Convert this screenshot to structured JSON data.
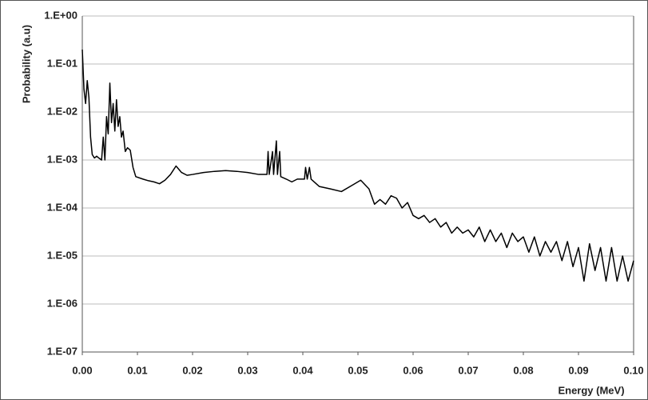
{
  "chart_data": {
    "type": "line",
    "ylabel": "Probability (a.u)",
    "xlabel": "Energy (MeV)",
    "log_y": true,
    "grid": true,
    "xlim": [
      0,
      0.1
    ],
    "ylim": [
      1e-07,
      1
    ],
    "xticks": [
      {
        "value": 0,
        "label": "0.00"
      },
      0.01,
      0.02,
      0.03,
      0.04,
      0.05,
      0.06,
      0.07,
      0.08,
      0.09,
      {
        "value": 0.1,
        "label": "0.10"
      }
    ],
    "yticks": [
      {
        "value": 1e-07,
        "label": "1.E-07"
      },
      {
        "value": 1e-06,
        "label": "1.E-06"
      },
      {
        "value": 1e-05,
        "label": "1.E-05"
      },
      {
        "value": 0.0001,
        "label": "1.E-04"
      },
      {
        "value": 0.001,
        "label": "1.E-03"
      },
      {
        "value": 0.01,
        "label": "1.E-02"
      },
      {
        "value": 0.1,
        "label": "1.E-01"
      },
      {
        "value": 1,
        "label": "1.E+00"
      }
    ],
    "x": [
      0,
      0.0003,
      0.0006,
      0.0009,
      0.0012,
      0.0015,
      0.0018,
      0.0022,
      0.0026,
      0.003,
      0.0035,
      0.0038,
      0.0041,
      0.0044,
      0.0047,
      0.005,
      0.0053,
      0.0056,
      0.0059,
      0.0062,
      0.0065,
      0.0068,
      0.0071,
      0.0074,
      0.0078,
      0.0082,
      0.0087,
      0.0092,
      0.0097,
      0.011,
      0.012,
      0.013,
      0.014,
      0.015,
      0.016,
      0.017,
      0.018,
      0.019,
      0.02,
      0.022,
      0.024,
      0.026,
      0.028,
      0.03,
      0.032,
      0.0335,
      0.0337,
      0.0339,
      0.0345,
      0.0347,
      0.0352,
      0.0354,
      0.0358,
      0.036,
      0.037,
      0.038,
      0.039,
      0.0403,
      0.0405,
      0.0408,
      0.0412,
      0.0415,
      0.043,
      0.045,
      0.047,
      0.049,
      0.0505,
      0.052,
      0.053,
      0.054,
      0.055,
      0.056,
      0.057,
      0.058,
      0.059,
      0.06,
      0.061,
      0.062,
      0.063,
      0.064,
      0.065,
      0.066,
      0.067,
      0.068,
      0.069,
      0.07,
      0.071,
      0.072,
      0.073,
      0.074,
      0.075,
      0.076,
      0.077,
      0.078,
      0.079,
      0.08,
      0.081,
      0.082,
      0.083,
      0.084,
      0.085,
      0.086,
      0.087,
      0.088,
      0.089,
      0.09,
      0.091,
      0.092,
      0.093,
      0.094,
      0.095,
      0.096,
      0.097,
      0.098,
      0.099,
      0.1
    ],
    "series": [
      {
        "color": "#000000",
        "values": [
          0.2,
          0.03,
          0.015,
          0.045,
          0.02,
          0.003,
          0.0013,
          0.0011,
          0.0012,
          0.0011,
          0.001,
          0.003,
          0.001,
          0.008,
          0.0035,
          0.04,
          0.006,
          0.015,
          0.004,
          0.018,
          0.005,
          0.008,
          0.003,
          0.004,
          0.0015,
          0.0018,
          0.0016,
          0.0007,
          0.00045,
          0.0004,
          0.00037,
          0.00035,
          0.00032,
          0.00038,
          0.0005,
          0.00075,
          0.00055,
          0.00048,
          0.0005,
          0.00055,
          0.00058,
          0.0006,
          0.00058,
          0.00055,
          0.0005,
          0.0005,
          0.0015,
          0.0005,
          0.0015,
          0.0005,
          0.0025,
          0.0005,
          0.0015,
          0.00045,
          0.0004,
          0.00035,
          0.0004,
          0.0004,
          0.0007,
          0.0004,
          0.0007,
          0.0004,
          0.00028,
          0.00025,
          0.00022,
          0.0003,
          0.00038,
          0.00025,
          0.00012,
          0.00015,
          0.00012,
          0.00018,
          0.00016,
          0.0001,
          0.00013,
          7e-05,
          6e-05,
          7e-05,
          5e-05,
          6e-05,
          4e-05,
          5e-05,
          3e-05,
          4e-05,
          3e-05,
          3.5e-05,
          2.5e-05,
          4e-05,
          2e-05,
          3.5e-05,
          2e-05,
          3e-05,
          1.5e-05,
          3e-05,
          2e-05,
          2.5e-05,
          1.2e-05,
          2.5e-05,
          1e-05,
          2e-05,
          1.2e-05,
          2e-05,
          8e-06,
          2e-05,
          6e-06,
          1.5e-05,
          3e-06,
          1.8e-05,
          5e-06,
          1.5e-05,
          3e-06,
          1.5e-05,
          3e-06,
          1e-05,
          3e-06,
          8e-06
        ]
      }
    ]
  }
}
